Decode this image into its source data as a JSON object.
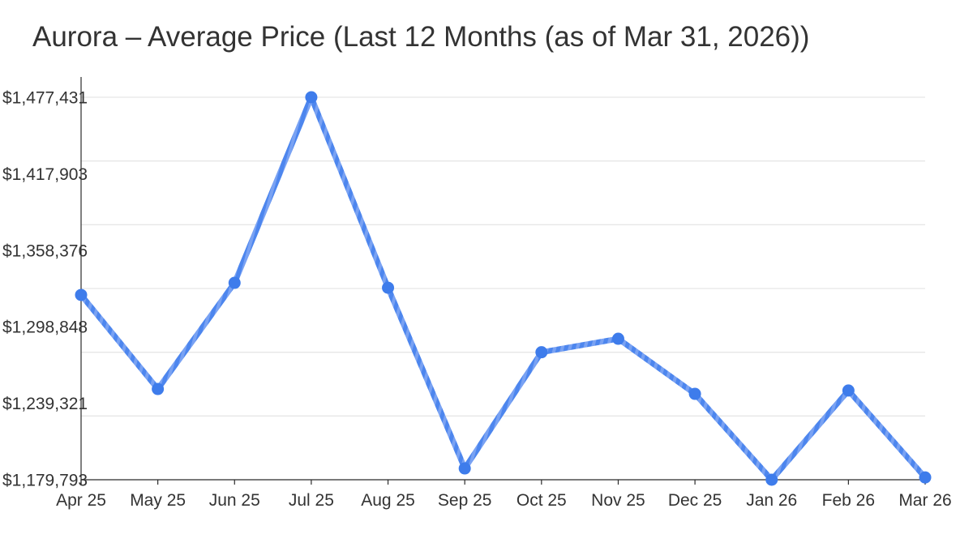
{
  "title": "Aurora – Average Price (Last 12 Months (as of Mar 31, 2026))",
  "chart_data": {
    "type": "line",
    "title": "Aurora – Average Price (Last 12 Months (as of Mar 31, 2026))",
    "x_labels": [
      "Apr 25",
      "May 25",
      "Jun 25",
      "Jul 25",
      "Aug 25",
      "Sep 25",
      "Oct 25",
      "Nov 25",
      "Dec 25",
      "Jan 26",
      "Feb 26",
      "Mar 26"
    ],
    "series": [
      {
        "name": "Average Price",
        "values": [
          1323600,
          1250400,
          1333000,
          1477431,
          1329200,
          1188600,
          1279000,
          1289500,
          1246600,
          1179793,
          1249200,
          1181600
        ]
      }
    ],
    "ylim": [
      1179793,
      1477431
    ],
    "y_tick_labels": [
      "$1,477,431",
      "$1,417,903",
      "$1,358,376",
      "$1,298,848",
      "$1,239,321",
      "$1,179,793"
    ],
    "y_tick_values": [
      1477431,
      1417903,
      1358376,
      1298848,
      1239321,
      1179793
    ],
    "xlabel": "",
    "ylabel": "",
    "legend": "none",
    "grid": {
      "horizontal_lines": 7,
      "vertical_lines": 0
    },
    "colors": {
      "line": "#4d86ee",
      "line_stripe": "#79a2f3",
      "point": "#3e7ceb",
      "grid": "#e6e6e6",
      "axis": "#2b2b2b",
      "tick_text": "#333333",
      "title_text": "#333333",
      "background": "#ffffff"
    }
  }
}
